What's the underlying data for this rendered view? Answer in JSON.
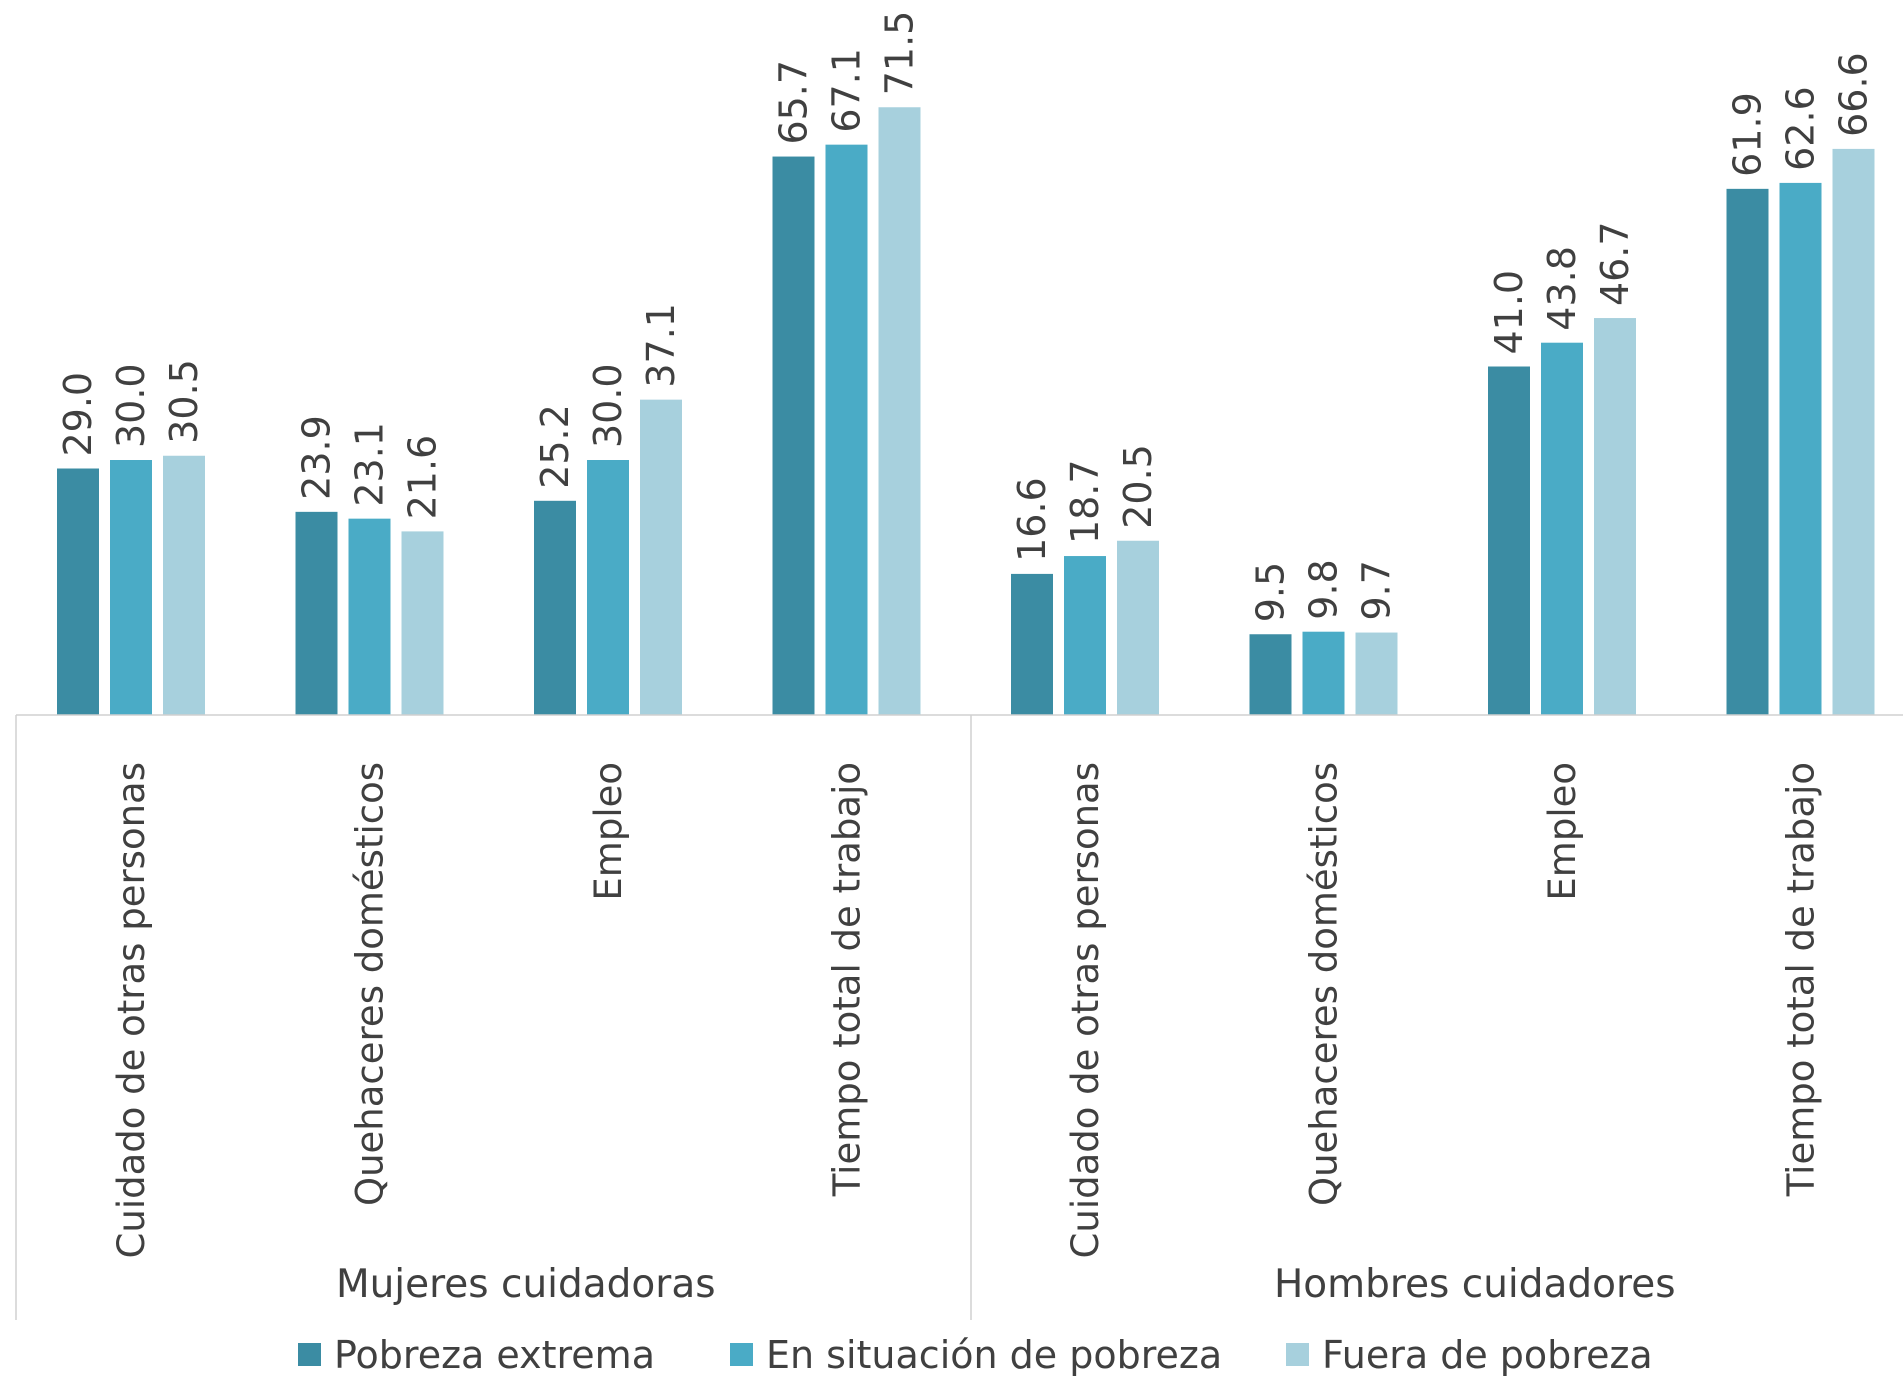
{
  "chart_data": {
    "type": "bar",
    "title": "",
    "xlabel": "",
    "ylabel": "",
    "ylim": [
      0,
      80
    ],
    "grid": false,
    "legend_position": "bottom",
    "groups": [
      {
        "label": "Mujeres cuidadoras",
        "categories": [
          "Cuidado de otras personas",
          "Quehaceres domésticos",
          "Empleo",
          "Tiempo total de trabajo"
        ]
      },
      {
        "label": "Hombres cuidadores",
        "categories": [
          "Cuidado de otras personas",
          "Quehaceres domésticos",
          "Empleo",
          "Tiempo total de trabajo"
        ]
      }
    ],
    "series": [
      {
        "name": "Pobreza extrema",
        "color": "#3b8ca3",
        "values": [
          29.0,
          23.9,
          25.2,
          65.7,
          16.6,
          9.5,
          41.0,
          61.9
        ],
        "labels": [
          "29.0",
          "23.9",
          "25.2",
          "65.7",
          "16.6",
          "9.5",
          "41.0",
          "61.9"
        ]
      },
      {
        "name": "En situación de pobreza",
        "color": "#4aabc6",
        "values": [
          30.0,
          23.1,
          30.0,
          67.1,
          18.7,
          9.8,
          43.8,
          62.6
        ],
        "labels": [
          "30.0",
          "23.1",
          "30.0",
          "67.1",
          "18.7",
          "9.8",
          "43.8",
          "62.6"
        ]
      },
      {
        "name": "Fuera de pobreza",
        "color": "#a7d0dd",
        "values": [
          30.5,
          21.6,
          37.1,
          71.5,
          20.5,
          9.7,
          46.7,
          66.6
        ],
        "labels": [
          "30.5",
          "21.6",
          "37.1",
          "71.5",
          "20.5",
          "9.7",
          "46.7",
          "66.6"
        ]
      }
    ]
  }
}
